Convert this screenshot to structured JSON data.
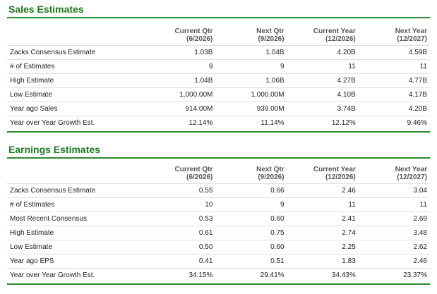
{
  "sales": {
    "title": "Sales Estimates",
    "headers": [
      {
        "line1": "Current Qtr",
        "line2": "(6/2026)"
      },
      {
        "line1": "Next Qtr",
        "line2": "(9/2026)"
      },
      {
        "line1": "Current Year",
        "line2": "(12/2026)"
      },
      {
        "line1": "Next Year",
        "line2": "(12/2027)"
      }
    ],
    "rows": [
      {
        "label": "Zacks Consensus Estimate",
        "values": [
          "1.03B",
          "1.04B",
          "4.20B",
          "4.59B"
        ]
      },
      {
        "label": "# of Estimates",
        "values": [
          "9",
          "9",
          "11",
          "11"
        ]
      },
      {
        "label": "High Estimate",
        "values": [
          "1.04B",
          "1.06B",
          "4.27B",
          "4.77B"
        ]
      },
      {
        "label": "Low Estimate",
        "values": [
          "1,000.00M",
          "1,000.00M",
          "4.10B",
          "4.17B"
        ]
      },
      {
        "label": "Year ago Sales",
        "values": [
          "914.00M",
          "939.00M",
          "3.74B",
          "4.20B"
        ]
      },
      {
        "label": "Year over Year Growth Est.",
        "values": [
          "12.14%",
          "11.14%",
          "12.12%",
          "9.46%"
        ]
      }
    ]
  },
  "earnings": {
    "title": "Earnings Estimates",
    "headers": [
      {
        "line1": "Current Qtr",
        "line2": "(6/2026)"
      },
      {
        "line1": "Next Qtr",
        "line2": "(9/2026)"
      },
      {
        "line1": "Current Year",
        "line2": "(12/2026)"
      },
      {
        "line1": "Next Year",
        "line2": "(12/2027)"
      }
    ],
    "rows": [
      {
        "label": "Zacks Consensus Estimate",
        "values": [
          "0.55",
          "0.66",
          "2.46",
          "3.04"
        ]
      },
      {
        "label": "# of Estimates",
        "values": [
          "10",
          "9",
          "11",
          "11"
        ]
      },
      {
        "label": "Most Recent Consensus",
        "values": [
          "0.53",
          "0.60",
          "2.41",
          "2.69"
        ]
      },
      {
        "label": "High Estimate",
        "values": [
          "0.61",
          "0.75",
          "2.74",
          "3.48"
        ]
      },
      {
        "label": "Low Estimate",
        "values": [
          "0.50",
          "0.60",
          "2.25",
          "2.62"
        ]
      },
      {
        "label": "Year ago EPS",
        "values": [
          "0.41",
          "0.51",
          "1.83",
          "2.46"
        ]
      },
      {
        "label": "Year over Year Growth Est.",
        "values": [
          "34.15%",
          "29.41%",
          "34.43%",
          "23.37%"
        ]
      }
    ]
  },
  "colors": {
    "accent": "#2e8b2e",
    "title": "#1f7a1f"
  }
}
